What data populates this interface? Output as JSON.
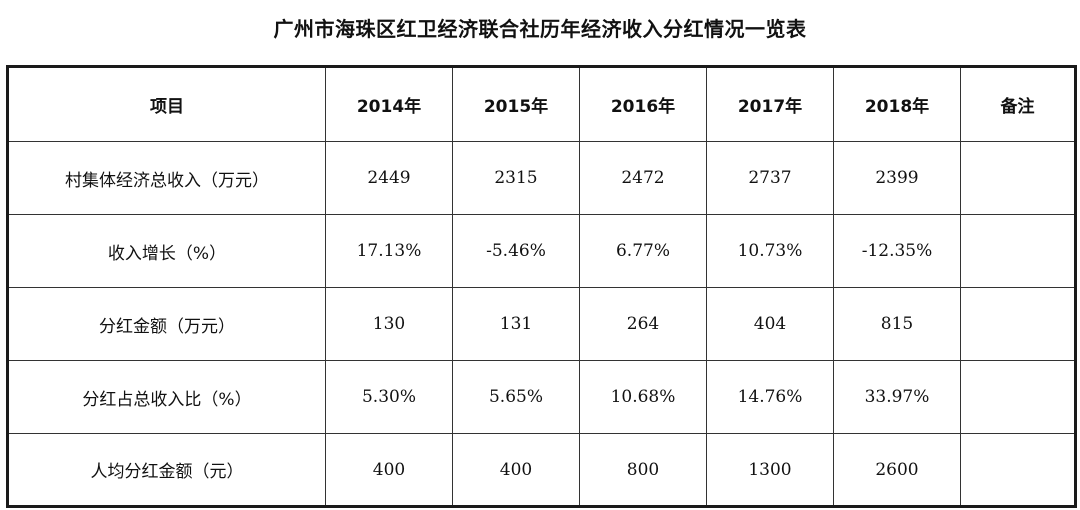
{
  "title": "广州市海珠区红卫经济联合社历年经济收入分红情况一览表",
  "table": {
    "headers": [
      "项目",
      "2014年",
      "2015年",
      "2016年",
      "2017年",
      "2018年",
      "备注"
    ],
    "rows": [
      {
        "label": "村集体经济总收入（万元）",
        "values": [
          "2449",
          "2315",
          "2472",
          "2737",
          "2399"
        ],
        "note": ""
      },
      {
        "label": "收入增长（%）",
        "values": [
          "17.13%",
          "-5.46%",
          "6.77%",
          "10.73%",
          "-12.35%"
        ],
        "note": ""
      },
      {
        "label": "分红金额（万元）",
        "values": [
          "130",
          "131",
          "264",
          "404",
          "815"
        ],
        "note": ""
      },
      {
        "label": "分红占总收入比（%）",
        "values": [
          "5.30%",
          "5.65%",
          "10.68%",
          "14.76%",
          "33.97%"
        ],
        "note": ""
      },
      {
        "label": "人均分红金额（元）",
        "values": [
          "400",
          "400",
          "800",
          "1300",
          "2600"
        ],
        "note": ""
      }
    ]
  }
}
